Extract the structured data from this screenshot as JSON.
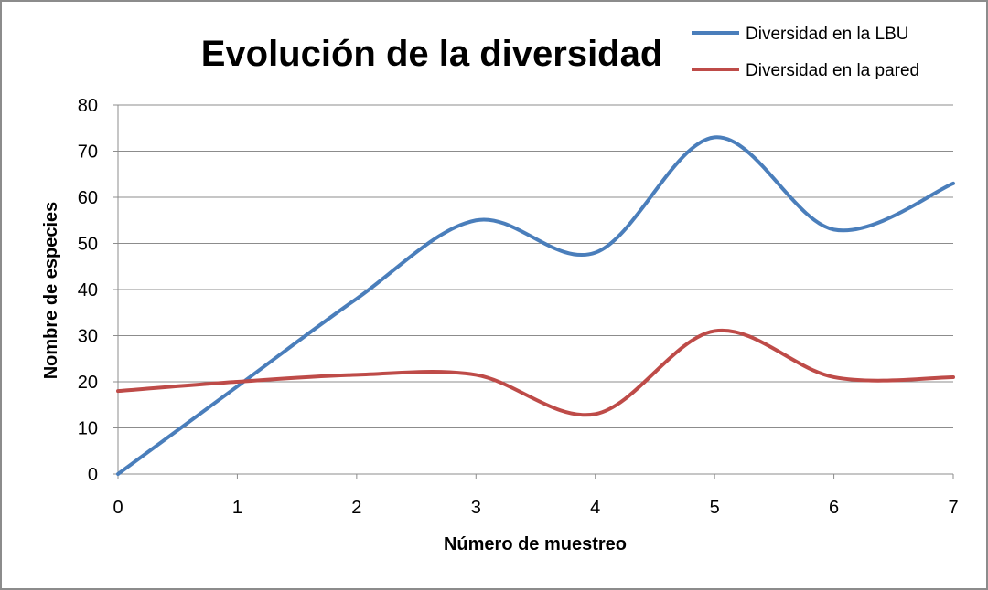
{
  "chart_data": {
    "type": "line",
    "title": "Evolución de la diversidad",
    "xlabel": "Número de muestreo",
    "ylabel": "Nombre de especies",
    "x": [
      0,
      1,
      2,
      3,
      4,
      5,
      6,
      7
    ],
    "xlim": [
      0,
      7
    ],
    "ylim": [
      0,
      80
    ],
    "yticks": [
      0,
      10,
      20,
      30,
      40,
      50,
      60,
      70,
      80
    ],
    "xtick_labels": [
      "0",
      "1",
      "2",
      "3",
      "4",
      "5",
      "6",
      "7"
    ],
    "ytick_labels": [
      "0",
      "10",
      "20",
      "30",
      "40",
      "50",
      "60",
      "70",
      "80"
    ],
    "grid": "horizontal",
    "legend_position": "top-right",
    "smooth": true,
    "series": [
      {
        "name": "Diversidad en la LBU",
        "color": "#4a7ebb",
        "values": [
          0,
          19,
          38,
          55,
          48,
          73,
          53,
          63
        ]
      },
      {
        "name": "Diversidad en la pared",
        "color": "#be4b48",
        "values": [
          18,
          20,
          21.5,
          21.5,
          13,
          31,
          21,
          21
        ]
      }
    ]
  }
}
